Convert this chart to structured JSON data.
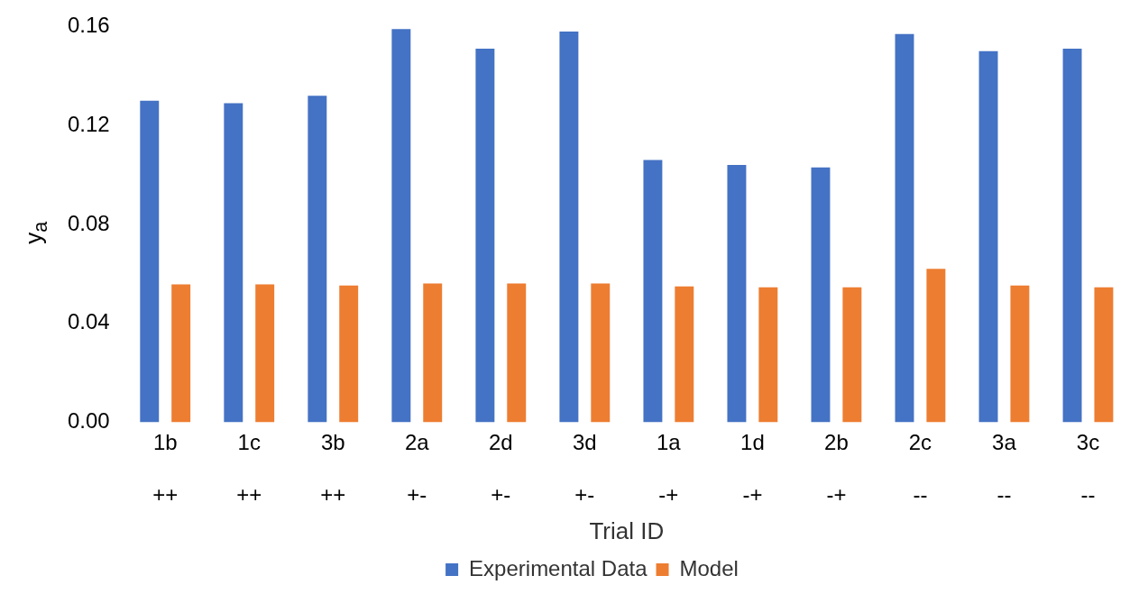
{
  "chart_data": {
    "type": "bar",
    "xlabel": "Trial ID",
    "ylabel": "y$_{a}$",
    "categories": [
      "1b\n\n++",
      "1c\n\n++",
      "3b\n\n++",
      "2a\n\n+-",
      "2d\n\n+-",
      "3d\n\n+-",
      "1a\n\n-+",
      "1d\n\n-+",
      "2b\n\n-+",
      "2c\n\n--",
      "3a\n\n--",
      "3c\n\n--"
    ],
    "series": [
      {
        "name": "Experimental Data",
        "color": "#4472c4",
        "values": [
          0.13,
          0.129,
          0.132,
          0.159,
          0.151,
          0.158,
          0.106,
          0.104,
          0.103,
          0.157,
          0.15,
          0.151
        ]
      },
      {
        "name": "Model",
        "color": "#ed7d31",
        "values": [
          0.0557,
          0.0557,
          0.0553,
          0.0561,
          0.0561,
          0.0561,
          0.0549,
          0.0545,
          0.0545,
          0.062,
          0.0553,
          0.0545
        ]
      }
    ],
    "ylim": [
      0,
      0.16
    ],
    "yticks": [
      {
        "value": 0,
        "label": "0.00"
      },
      {
        "value": 0.04,
        "label": "0.04"
      },
      {
        "value": 0.08,
        "label": "0.08"
      },
      {
        "value": 0.12,
        "label": "0.12"
      },
      {
        "value": 0.16,
        "label": "0.16"
      }
    ],
    "grid": false,
    "legend": "bottom"
  }
}
